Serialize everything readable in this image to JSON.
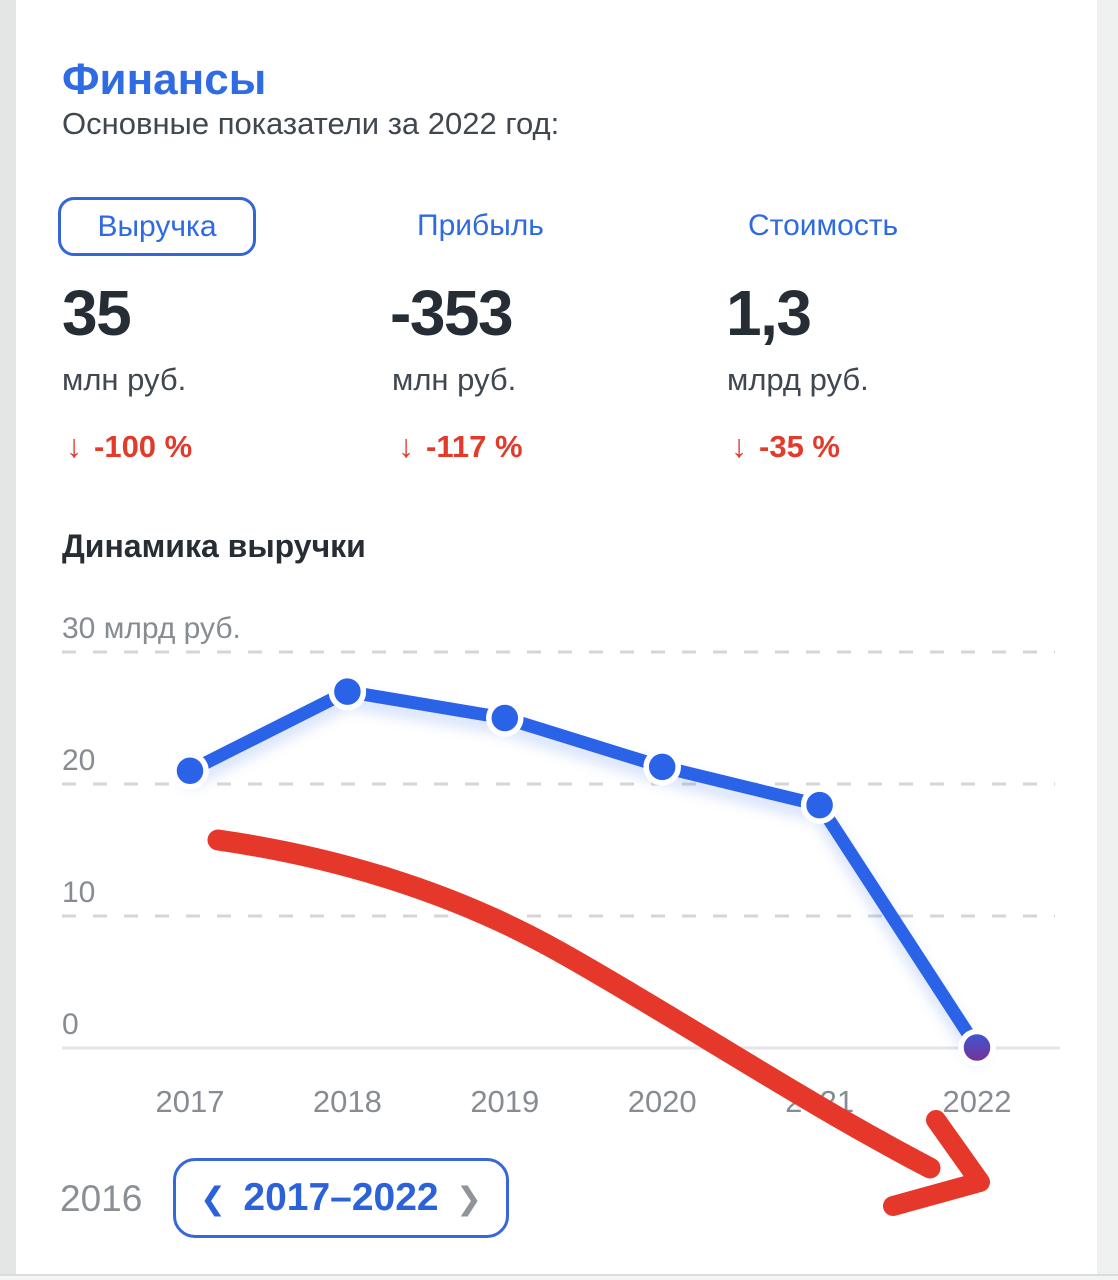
{
  "header": {
    "title": "Финансы",
    "subtitle": "Основные показатели за 2022 год:"
  },
  "metrics": [
    {
      "label": "Выручка",
      "value": "35",
      "unit": "млн руб.",
      "change_icon": "↓",
      "change": "-100 %",
      "selected": true
    },
    {
      "label": "Прибыль",
      "value": "-353",
      "unit": "млн руб.",
      "change_icon": "↓",
      "change": "-117 %",
      "selected": false
    },
    {
      "label": "Стоимость",
      "value": "1,3",
      "unit": "млрд руб.",
      "change_icon": "↓",
      "change": "-35 %",
      "selected": false
    }
  ],
  "chart_section_title": "Динамика выручки",
  "chart_data": {
    "type": "line",
    "title": "Динамика выручки",
    "x": [
      "2017",
      "2018",
      "2019",
      "2020",
      "2021",
      "2022"
    ],
    "series": [
      {
        "name": "Выручка, млрд руб.",
        "color": "#2b63e8",
        "values": [
          21,
          27,
          25,
          21.3,
          18.4,
          0.035
        ]
      }
    ],
    "ylim": [
      0,
      30
    ],
    "yticks": [
      0,
      10,
      20,
      30
    ],
    "ytick_labels": [
      "0",
      "10",
      "20",
      "30 млрд руб."
    ],
    "grid": "horizontal dashed gridlines at 10/20/30, solid baseline at 0",
    "legend": false,
    "last_point_gradient": [
      "#3b59d6",
      "#7b2f92"
    ],
    "annotation": "hand-drawn thick red arrow over the plot pointing down to the right"
  },
  "pager": {
    "prev_range_label": "2016",
    "current_range": "2017–2022",
    "prev_icon": "❮",
    "next_icon": "❯"
  },
  "colors": {
    "accent_blue": "#2f6be3",
    "line_blue": "#2b63e8",
    "negative_red": "#e23a2b",
    "dark_text": "#262d35",
    "secondary_text": "#40474f",
    "axis_gray": "#878c92",
    "grid_dash": "#d5d6d8",
    "zero_line": "#e3e5e7"
  }
}
